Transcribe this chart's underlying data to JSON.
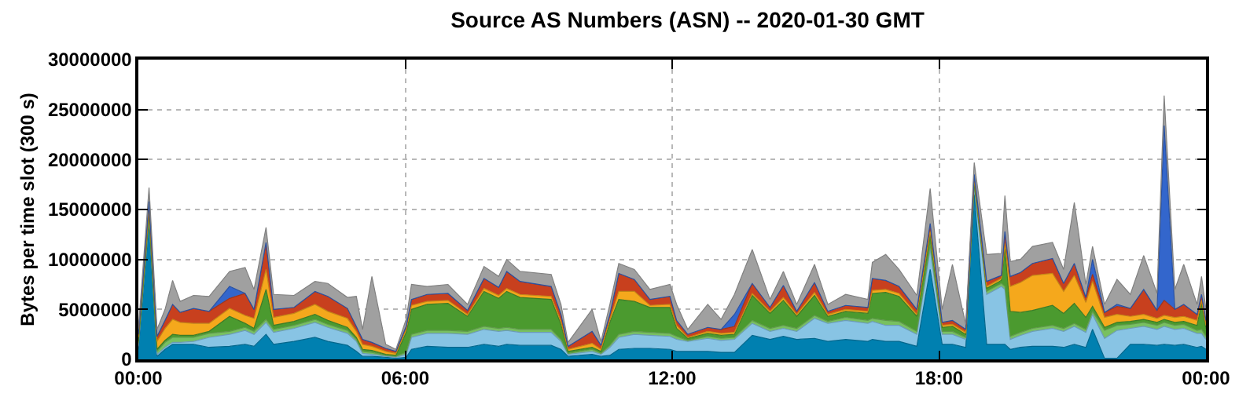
{
  "chart_data": {
    "type": "area",
    "stacked": true,
    "title": "Source AS Numbers (ASN) -- 2020-01-30 GMT",
    "ylabel": "Bytes per time slot (300 s)",
    "x": [
      0,
      0.24,
      0.42,
      0.6,
      0.77,
      0.94,
      1.24,
      1.59,
      2.05,
      2.4,
      2.6,
      2.87,
      3.04,
      3.5,
      3.97,
      4.26,
      4.7,
      4.9,
      5.04,
      5.25,
      5.56,
      5.79,
      6.02,
      6.14,
      6.49,
      6.96,
      7.4,
      7.77,
      8.1,
      8.28,
      8.58,
      9.28,
      9.5,
      9.66,
      10.2,
      10.4,
      10.6,
      10.8,
      11.15,
      11.5,
      11.95,
      12.1,
      12.35,
      12.8,
      13.1,
      13.4,
      13.8,
      14.2,
      14.5,
      14.8,
      15.2,
      15.5,
      15.9,
      16.4,
      16.5,
      16.8,
      17.1,
      17.5,
      17.8,
      18.07,
      18.3,
      18.6,
      18.79,
      19.07,
      19.4,
      19.48,
      19.6,
      19.83,
      20.1,
      20.55,
      20.8,
      21.04,
      21.3,
      21.45,
      21.72,
      22.0,
      22.3,
      22.6,
      22.9,
      23.06,
      23.3,
      23.5,
      23.8,
      23.9,
      24.0
    ],
    "xlim": [
      0,
      24
    ],
    "xticks": [
      {
        "value": 0,
        "label": "00:00"
      },
      {
        "value": 6,
        "label": "06:00"
      },
      {
        "value": 12,
        "label": "12:00"
      },
      {
        "value": 18,
        "label": "18:00"
      },
      {
        "value": 24,
        "label": "00:00"
      }
    ],
    "ylim": [
      0,
      30000000
    ],
    "yticks": [
      0,
      5000000,
      10000000,
      15000000,
      20000000,
      25000000,
      30000000
    ],
    "grid": true,
    "series": [
      {
        "color": "#0080b0",
        "values": [
          1000000.0,
          13500000.0,
          300000.0,
          1000000.0,
          1500000.0,
          1500000.0,
          1500000.0,
          1200000.0,
          1300000.0,
          1500000.0,
          1300000.0,
          2500000.0,
          1500000.0,
          1800000.0,
          2200000.0,
          1800000.0,
          1400000.0,
          800000.0,
          300000.0,
          300000.0,
          200000.0,
          100000.0,
          200000.0,
          1000000.0,
          1300000.0,
          1200000.0,
          1200000.0,
          1500000.0,
          1300000.0,
          1500000.0,
          1400000.0,
          1400000.0,
          1000000.0,
          300000.0,
          500000.0,
          300000.0,
          400000.0,
          1000000.0,
          1100000.0,
          1100000.0,
          1000000.0,
          800000.0,
          800000.0,
          800000.0,
          700000.0,
          700000.0,
          2400000.0,
          2000000.0,
          2300000.0,
          2000000.0,
          2100000.0,
          1800000.0,
          2000000.0,
          1800000.0,
          2000000.0,
          1800000.0,
          1800000.0,
          1300000.0,
          9000000.0,
          1500000.0,
          1500000.0,
          1200000.0,
          16500000.0,
          1500000.0,
          1500000.0,
          1500000.0,
          1000000.0,
          1200000.0,
          1300000.0,
          1300000.0,
          1200000.0,
          1500000.0,
          1200000.0,
          3000000.0,
          100000.0,
          100000.0,
          1500000.0,
          1500000.0,
          1400000.0,
          1500000.0,
          1400000.0,
          1500000.0,
          1200000.0,
          1300000.0,
          1000000.0
        ]
      },
      {
        "color": "#88c4e4",
        "values": [
          300000.0,
          500000.0,
          200000.0,
          200000.0,
          200000.0,
          200000.0,
          300000.0,
          1000000.0,
          1200000.0,
          1400000.0,
          1200000.0,
          1200000.0,
          1200000.0,
          1300000.0,
          1500000.0,
          1400000.0,
          1200000.0,
          1000000.0,
          300000.0,
          200000.0,
          100000.0,
          100000.0,
          300000.0,
          1200000.0,
          1300000.0,
          1400000.0,
          1300000.0,
          1500000.0,
          1500000.0,
          1400000.0,
          1300000.0,
          1300000.0,
          800000.0,
          200000.0,
          300000.0,
          200000.0,
          800000.0,
          1200000.0,
          1400000.0,
          1300000.0,
          1300000.0,
          1200000.0,
          1000000.0,
          1300000.0,
          1200000.0,
          1300000.0,
          1200000.0,
          800000.0,
          800000.0,
          800000.0,
          2000000.0,
          1800000.0,
          1900000.0,
          1800000.0,
          1800000.0,
          1600000.0,
          1600000.0,
          1200000.0,
          2000000.0,
          1000000.0,
          1000000.0,
          800000.0,
          800000.0,
          5000000.0,
          5800000.0,
          5500000.0,
          1000000.0,
          1200000.0,
          1500000.0,
          1800000.0,
          1600000.0,
          1800000.0,
          1500000.0,
          1500000.0,
          2000000.0,
          2800000.0,
          1600000.0,
          1800000.0,
          1600000.0,
          1800000.0,
          1600000.0,
          1600000.0,
          1400000.0,
          1300000.0,
          1000000.0
        ]
      },
      {
        "color": "#78c060",
        "values": [
          300000.0,
          300000.0,
          300000.0,
          500000.0,
          500000.0,
          500000.0,
          400000.0,
          400000.0,
          300000.0,
          300000.0,
          300000.0,
          300000.0,
          300000.0,
          300000.0,
          300000.0,
          300000.0,
          300000.0,
          200000.0,
          200000.0,
          200000.0,
          100000.0,
          100000.0,
          200000.0,
          300000.0,
          300000.0,
          300000.0,
          300000.0,
          300000.0,
          300000.0,
          300000.0,
          300000.0,
          300000.0,
          200000.0,
          100000.0,
          200000.0,
          100000.0,
          200000.0,
          300000.0,
          300000.0,
          300000.0,
          300000.0,
          300000.0,
          100000.0,
          200000.0,
          200000.0,
          200000.0,
          300000.0,
          300000.0,
          300000.0,
          300000.0,
          300000.0,
          200000.0,
          300000.0,
          300000.0,
          300000.0,
          500000.0,
          400000.0,
          300000.0,
          500000.0,
          300000.0,
          300000.0,
          200000.0,
          200000.0,
          300000.0,
          300000.0,
          300000.0,
          300000.0,
          300000.0,
          300000.0,
          300000.0,
          300000.0,
          300000.0,
          300000.0,
          300000.0,
          800000.0,
          500000.0,
          400000.0,
          400000.0,
          400000.0,
          400000.0,
          400000.0,
          400000.0,
          300000.0,
          400000.0,
          300000.0
        ]
      },
      {
        "color": "#4b9a2f",
        "values": [
          200000.0,
          200000.0,
          200000.0,
          200000.0,
          300000.0,
          200000.0,
          200000.0,
          200000.0,
          1500000.0,
          400000.0,
          300000.0,
          3000000.0,
          400000.0,
          400000.0,
          500000.0,
          400000.0,
          300000.0,
          200000.0,
          200000.0,
          200000.0,
          100000.0,
          100000.0,
          2000000.0,
          2500000.0,
          2600000.0,
          2700000.0,
          1500000.0,
          3500000.0,
          3000000.0,
          3600000.0,
          3200000.0,
          3000000.0,
          1500000.0,
          200000.0,
          200000.0,
          200000.0,
          2300000.0,
          3500000.0,
          3000000.0,
          2500000.0,
          2600000.0,
          800000.0,
          200000.0,
          300000.0,
          300000.0,
          300000.0,
          2500000.0,
          1500000.0,
          2500000.0,
          1200000.0,
          2000000.0,
          500000.0,
          600000.0,
          700000.0,
          2500000.0,
          2800000.0,
          2500000.0,
          1500000.0,
          1000000.0,
          400000.0,
          500000.0,
          300000.0,
          300000.0,
          300000.0,
          300000.0,
          3800000.0,
          2500000.0,
          2000000.0,
          1800000.0,
          2000000.0,
          1500000.0,
          2000000.0,
          1200000.0,
          500000.0,
          300000.0,
          300000.0,
          300000.0,
          300000.0,
          300000.0,
          300000.0,
          300000.0,
          300000.0,
          500000.0,
          2600000.0,
          800000.0
        ]
      },
      {
        "color": "#f5a81c",
        "values": [
          400000.0,
          500000.0,
          800000.0,
          1200000.0,
          1500000.0,
          1300000.0,
          1200000.0,
          800000.0,
          800000.0,
          800000.0,
          1000000.0,
          2000000.0,
          800000.0,
          800000.0,
          1000000.0,
          900000.0,
          900000.0,
          600000.0,
          500000.0,
          400000.0,
          300000.0,
          200000.0,
          300000.0,
          400000.0,
          300000.0,
          300000.0,
          200000.0,
          300000.0,
          300000.0,
          300000.0,
          300000.0,
          300000.0,
          300000.0,
          200000.0,
          400000.0,
          200000.0,
          300000.0,
          800000.0,
          1000000.0,
          200000.0,
          300000.0,
          300000.0,
          100000.0,
          200000.0,
          200000.0,
          200000.0,
          200000.0,
          200000.0,
          300000.0,
          200000.0,
          300000.0,
          200000.0,
          200000.0,
          200000.0,
          300000.0,
          300000.0,
          300000.0,
          200000.0,
          300000.0,
          200000.0,
          200000.0,
          200000.0,
          300000.0,
          200000.0,
          200000.0,
          500000.0,
          2500000.0,
          3000000.0,
          3500000.0,
          3200000.0,
          2200000.0,
          2800000.0,
          1500000.0,
          2500000.0,
          1000000.0,
          800000.0,
          500000.0,
          500000.0,
          400000.0,
          400000.0,
          500000.0,
          500000.0,
          500000.0,
          300000.0,
          300000.0
        ]
      },
      {
        "color": "#c8401e",
        "values": [
          300000.0,
          800000.0,
          500000.0,
          800000.0,
          1500000.0,
          1000000.0,
          1500000.0,
          1200000.0,
          1000000.0,
          2200000.0,
          900000.0,
          2700000.0,
          800000.0,
          600000.0,
          1300000.0,
          1500000.0,
          1000000.0,
          500000.0,
          500000.0,
          400000.0,
          300000.0,
          200000.0,
          300000.0,
          600000.0,
          700000.0,
          700000.0,
          400000.0,
          1000000.0,
          800000.0,
          1700000.0,
          1300000.0,
          1000000.0,
          700000.0,
          300000.0,
          1200000.0,
          400000.0,
          500000.0,
          1800000.0,
          1200000.0,
          600000.0,
          800000.0,
          500000.0,
          300000.0,
          400000.0,
          400000.0,
          600000.0,
          1000000.0,
          400000.0,
          1200000.0,
          300000.0,
          1000000.0,
          300000.0,
          400000.0,
          400000.0,
          1200000.0,
          900000.0,
          700000.0,
          500000.0,
          800000.0,
          300000.0,
          400000.0,
          300000.0,
          400000.0,
          500000.0,
          300000.0,
          1200000.0,
          1000000.0,
          1000000.0,
          1200000.0,
          1500000.0,
          800000.0,
          1200000.0,
          500000.0,
          700000.0,
          500000.0,
          800000.0,
          800000.0,
          2500000.0,
          800000.0,
          1500000.0,
          800000.0,
          1200000.0,
          600000.0,
          600000.0,
          500000.0
        ]
      },
      {
        "color": "#3366cc",
        "values": [
          0,
          0,
          0,
          0,
          0,
          0,
          0,
          0,
          1200000.0,
          0,
          0,
          0,
          0,
          0,
          0,
          0,
          0,
          0,
          0,
          0,
          0,
          0,
          0,
          0,
          0,
          0,
          0,
          0,
          0,
          0,
          0,
          0,
          0,
          0,
          0,
          0,
          0,
          0,
          0,
          0,
          0,
          0,
          0,
          0,
          0,
          1200000.0,
          0,
          0,
          0,
          0,
          0,
          0,
          0,
          0,
          0,
          0,
          0,
          0,
          0,
          0,
          0,
          0,
          0,
          0,
          0,
          0,
          0,
          0,
          0,
          0,
          0,
          0,
          0,
          1500000.0,
          0,
          200000.0,
          0,
          0,
          0,
          17500000.0,
          0,
          0,
          0,
          0,
          0
        ]
      },
      {
        "color": "#a0a0a0",
        "values": [
          500000.0,
          1400000.0,
          700000.0,
          1100000.0,
          2400000.0,
          1100000.0,
          1300000.0,
          1500000.0,
          1500000.0,
          2600000.0,
          2000000.0,
          1500000.0,
          1500000.0,
          1200000.0,
          1000000.0,
          1300000.0,
          1100000.0,
          3000000.0,
          1000000.0,
          6600000.0,
          400000.0,
          200000.0,
          700000.0,
          1500000.0,
          800000.0,
          900000.0,
          600000.0,
          1200000.0,
          1100000.0,
          1200000.0,
          1000000.0,
          1200000.0,
          1000000.0,
          400000.0,
          2200000.0,
          400000.0,
          1000000.0,
          1000000.0,
          1000000.0,
          1000000.0,
          1200000.0,
          1600000.0,
          500000.0,
          2300000.0,
          1000000.0,
          2000000.0,
          3400000.0,
          800000.0,
          1400000.0,
          700000.0,
          1800000.0,
          700000.0,
          1100000.0,
          800000.0,
          1600000.0,
          2600000.0,
          1700000.0,
          1400000.0,
          3500000.0,
          1300000.0,
          5600000.0,
          500000.0,
          1200000.0,
          2700000.0,
          2200000.0,
          3600000.0,
          1500000.0,
          1300000.0,
          1700000.0,
          1600000.0,
          1400000.0,
          6100000.0,
          1300000.0,
          1300000.0,
          800000.0,
          2500000.0,
          1400000.0,
          3400000.0,
          1700000.0,
          3000000.0,
          2000000.0,
          4000000.0,
          1000000.0,
          1800000.0,
          1100000.0
        ]
      }
    ]
  }
}
